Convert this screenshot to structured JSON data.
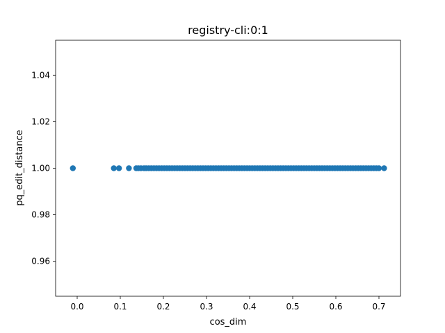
{
  "chart_data": {
    "type": "scatter",
    "title": "registry-cli:0:1",
    "xlabel": "cos_dim",
    "ylabel": "pq_edit_distance",
    "xlim": [
      -0.05,
      0.75
    ],
    "ylim": [
      0.945,
      1.055
    ],
    "x_ticks": [
      {
        "value": 0.0,
        "label": "0.0"
      },
      {
        "value": 0.1,
        "label": "0.1"
      },
      {
        "value": 0.2,
        "label": "0.2"
      },
      {
        "value": 0.3,
        "label": "0.3"
      },
      {
        "value": 0.4,
        "label": "0.4"
      },
      {
        "value": 0.5,
        "label": "0.5"
      },
      {
        "value": 0.6,
        "label": "0.6"
      },
      {
        "value": 0.7,
        "label": "0.7"
      }
    ],
    "y_ticks": [
      {
        "value": 0.96,
        "label": "0.96"
      },
      {
        "value": 0.98,
        "label": "0.98"
      },
      {
        "value": 1.0,
        "label": "1.00"
      },
      {
        "value": 1.02,
        "label": "1.02"
      },
      {
        "value": 1.04,
        "label": "1.04"
      }
    ],
    "grid": false,
    "marker_color": "#1f77b4",
    "series": [
      {
        "x": [
          -0.01,
          0.085,
          0.097,
          0.12,
          0.137,
          0.142,
          0.148,
          0.155,
          0.16,
          0.166,
          0.172,
          0.178,
          0.184,
          0.19,
          0.196,
          0.202,
          0.208,
          0.214,
          0.22,
          0.226,
          0.232,
          0.238,
          0.244,
          0.25,
          0.256,
          0.262,
          0.268,
          0.274,
          0.28,
          0.286,
          0.292,
          0.298,
          0.304,
          0.31,
          0.316,
          0.322,
          0.328,
          0.334,
          0.34,
          0.346,
          0.352,
          0.358,
          0.364,
          0.37,
          0.376,
          0.382,
          0.388,
          0.394,
          0.4,
          0.406,
          0.412,
          0.418,
          0.424,
          0.43,
          0.436,
          0.442,
          0.448,
          0.454,
          0.46,
          0.466,
          0.472,
          0.478,
          0.484,
          0.49,
          0.496,
          0.502,
          0.508,
          0.514,
          0.52,
          0.526,
          0.532,
          0.538,
          0.544,
          0.55,
          0.556,
          0.562,
          0.568,
          0.574,
          0.58,
          0.586,
          0.592,
          0.598,
          0.604,
          0.61,
          0.616,
          0.622,
          0.628,
          0.634,
          0.64,
          0.646,
          0.652,
          0.658,
          0.664,
          0.67,
          0.676,
          0.682,
          0.688,
          0.694,
          0.7,
          0.712
        ],
        "y": [
          1.0,
          1.0,
          1.0,
          1.0,
          1.0,
          1.0,
          1.0,
          1.0,
          1.0,
          1.0,
          1.0,
          1.0,
          1.0,
          1.0,
          1.0,
          1.0,
          1.0,
          1.0,
          1.0,
          1.0,
          1.0,
          1.0,
          1.0,
          1.0,
          1.0,
          1.0,
          1.0,
          1.0,
          1.0,
          1.0,
          1.0,
          1.0,
          1.0,
          1.0,
          1.0,
          1.0,
          1.0,
          1.0,
          1.0,
          1.0,
          1.0,
          1.0,
          1.0,
          1.0,
          1.0,
          1.0,
          1.0,
          1.0,
          1.0,
          1.0,
          1.0,
          1.0,
          1.0,
          1.0,
          1.0,
          1.0,
          1.0,
          1.0,
          1.0,
          1.0,
          1.0,
          1.0,
          1.0,
          1.0,
          1.0,
          1.0,
          1.0,
          1.0,
          1.0,
          1.0,
          1.0,
          1.0,
          1.0,
          1.0,
          1.0,
          1.0,
          1.0,
          1.0,
          1.0,
          1.0,
          1.0,
          1.0,
          1.0,
          1.0,
          1.0,
          1.0,
          1.0,
          1.0,
          1.0,
          1.0,
          1.0,
          1.0,
          1.0,
          1.0,
          1.0,
          1.0,
          1.0,
          1.0,
          1.0,
          1.0
        ]
      }
    ]
  }
}
